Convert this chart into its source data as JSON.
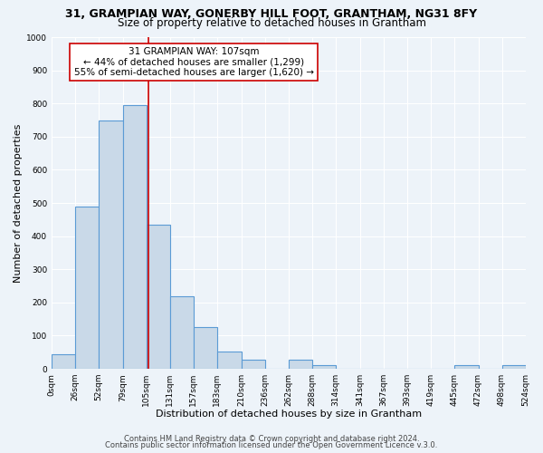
{
  "title_line1": "31, GRAMPIAN WAY, GONERBY HILL FOOT, GRANTHAM, NG31 8FY",
  "title_line2": "Size of property relative to detached houses in Grantham",
  "xlabel": "Distribution of detached houses by size in Grantham",
  "ylabel": "Number of detached properties",
  "bin_edges": [
    0,
    26,
    52,
    79,
    105,
    131,
    157,
    183,
    210,
    236,
    262,
    288,
    314,
    341,
    367,
    393,
    419,
    445,
    472,
    498,
    524
  ],
  "bar_heights": [
    45,
    490,
    750,
    795,
    435,
    220,
    125,
    52,
    28,
    0,
    28,
    12,
    0,
    0,
    0,
    0,
    0,
    10,
    0,
    10
  ],
  "bar_color": "#c9d9e8",
  "bar_edgecolor": "#5b9bd5",
  "bar_linewidth": 0.8,
  "vline_x": 107,
  "vline_color": "#cc0000",
  "annotation_title": "31 GRAMPIAN WAY: 107sqm",
  "annotation_line1": "← 44% of detached houses are smaller (1,299)",
  "annotation_line2": "55% of semi-detached houses are larger (1,620) →",
  "annotation_box_edgecolor": "#cc0000",
  "annotation_box_facecolor": "#ffffff",
  "ylim": [
    0,
    1000
  ],
  "yticks": [
    0,
    100,
    200,
    300,
    400,
    500,
    600,
    700,
    800,
    900,
    1000
  ],
  "xtick_labels": [
    "0sqm",
    "26sqm",
    "52sqm",
    "79sqm",
    "105sqm",
    "131sqm",
    "157sqm",
    "183sqm",
    "210sqm",
    "236sqm",
    "262sqm",
    "288sqm",
    "314sqm",
    "341sqm",
    "367sqm",
    "393sqm",
    "419sqm",
    "445sqm",
    "472sqm",
    "498sqm",
    "524sqm"
  ],
  "footer_line1": "Contains HM Land Registry data © Crown copyright and database right 2024.",
  "footer_line2": "Contains public sector information licensed under the Open Government Licence v.3.0.",
  "bg_color": "#edf3f9",
  "plot_bg_color": "#edf3f9",
  "grid_color": "#ffffff",
  "title1_fontsize": 9,
  "title2_fontsize": 8.5,
  "axis_label_fontsize": 8,
  "tick_fontsize": 6.5,
  "footer_fontsize": 6,
  "annotation_fontsize": 7.5
}
